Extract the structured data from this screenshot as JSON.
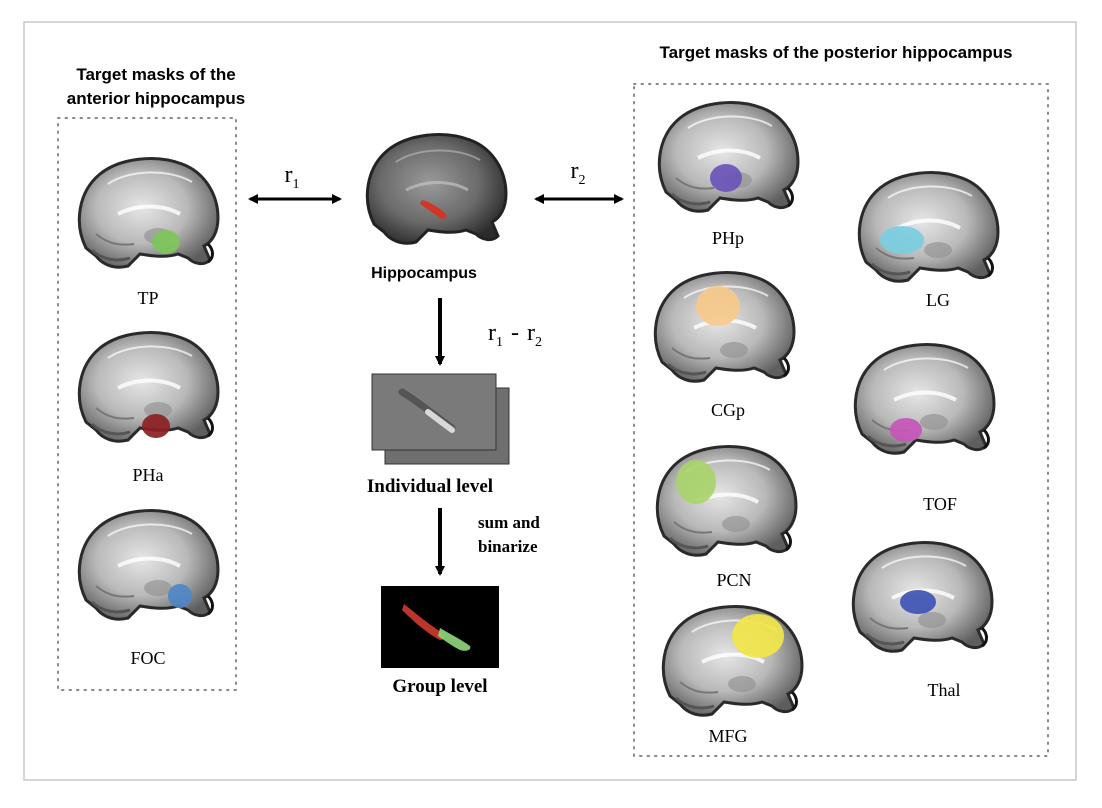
{
  "left_panel": {
    "title_line1": "Target masks of the",
    "title_line2": "anterior hippocampus",
    "masks": [
      {
        "label": "TP",
        "color": "#7dc55a"
      },
      {
        "label": "PHa",
        "color": "#8a1f24"
      },
      {
        "label": "FOC",
        "color": "#4f86c6"
      }
    ]
  },
  "center": {
    "seed_label": "Hippocampus",
    "seed_color": "#d8301e",
    "r1": {
      "base": "r",
      "sub": "1"
    },
    "r2": {
      "base": "r",
      "sub": "2"
    },
    "diff_label": {
      "a_base": "r",
      "a_sub": "1",
      "op": "-",
      "b_base": "r",
      "b_sub": "2"
    },
    "individual_label": "Individual level",
    "step_line1": "sum and",
    "step_line2": "binarize",
    "group_label": "Group level",
    "group_colors": {
      "anterior": "#cc3a2e",
      "posterior": "#8fd47a"
    }
  },
  "right_panel": {
    "title": "Target masks of the posterior hippocampus",
    "masks": [
      {
        "label": "PHp",
        "color": "#6b54b8"
      },
      {
        "label": "CGp",
        "color": "#f7c98a"
      },
      {
        "label": "PCN",
        "color": "#a9d46a"
      },
      {
        "label": "MFG",
        "color": "#f1e64a"
      },
      {
        "label": "LG",
        "color": "#79cde0"
      },
      {
        "label": "TOF",
        "color": "#c755b8"
      },
      {
        "label": "Thal",
        "color": "#3e52b4"
      }
    ]
  }
}
